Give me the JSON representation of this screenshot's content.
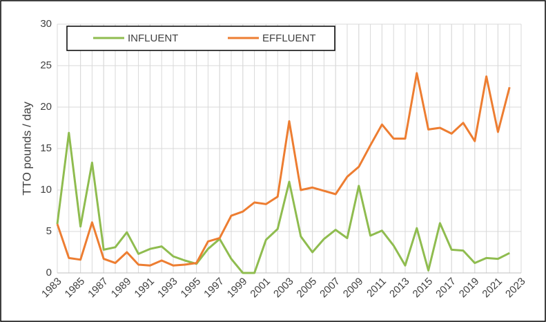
{
  "chart_data": {
    "type": "line",
    "y_label": "TTO pounds / day",
    "x": [
      1983,
      1984,
      1985,
      1986,
      1987,
      1988,
      1989,
      1990,
      1991,
      1992,
      1993,
      1994,
      1995,
      1996,
      1997,
      1998,
      1999,
      2000,
      2001,
      2002,
      2003,
      2004,
      2005,
      2006,
      2007,
      2008,
      2009,
      2010,
      2011,
      2012,
      2013,
      2014,
      2015,
      2016,
      2017,
      2018,
      2019,
      2020,
      2021,
      2022
    ],
    "series": [
      {
        "name": "INFLUENT",
        "color": "#8fbc4f",
        "values": [
          5.9,
          16.9,
          5.6,
          13.3,
          2.8,
          3.1,
          4.9,
          2.3,
          2.9,
          3.2,
          2.0,
          1.5,
          1.1,
          2.9,
          4.1,
          1.7,
          0,
          0,
          4.0,
          5.3,
          11.0,
          4.4,
          2.5,
          4.1,
          5.2,
          4.2,
          10.5,
          4.5,
          5.1,
          3.3,
          0.9,
          5.4,
          0.3,
          6.0,
          2.8,
          2.7,
          1.2,
          1.8,
          1.7,
          2.4
        ]
      },
      {
        "name": "EFFLUENT",
        "color": "#ed7d31",
        "values": [
          5.9,
          1.8,
          1.6,
          6.1,
          1.7,
          1.2,
          2.5,
          1.0,
          0.9,
          1.5,
          0.9,
          1.0,
          1.2,
          3.8,
          4.2,
          6.9,
          7.4,
          8.5,
          8.3,
          9.2,
          18.3,
          10.0,
          10.3,
          9.9,
          9.5,
          11.6,
          12.8,
          15.4,
          17.9,
          16.2,
          16.2,
          24.1,
          17.3,
          17.5,
          16.8,
          18.1,
          15.9,
          23.7,
          17.0,
          22.4
        ]
      }
    ],
    "xlim": [
      1983,
      2023
    ],
    "xticks": [
      1983,
      1985,
      1987,
      1989,
      1991,
      1993,
      1995,
      1997,
      1999,
      2001,
      2003,
      2005,
      2007,
      2009,
      2011,
      2013,
      2015,
      2017,
      2019,
      2021,
      2023
    ],
    "ylim": [
      0,
      30
    ],
    "yticks": [
      0,
      5,
      10,
      15,
      20,
      25,
      30
    ],
    "grid": true,
    "legend": "top-left"
  }
}
